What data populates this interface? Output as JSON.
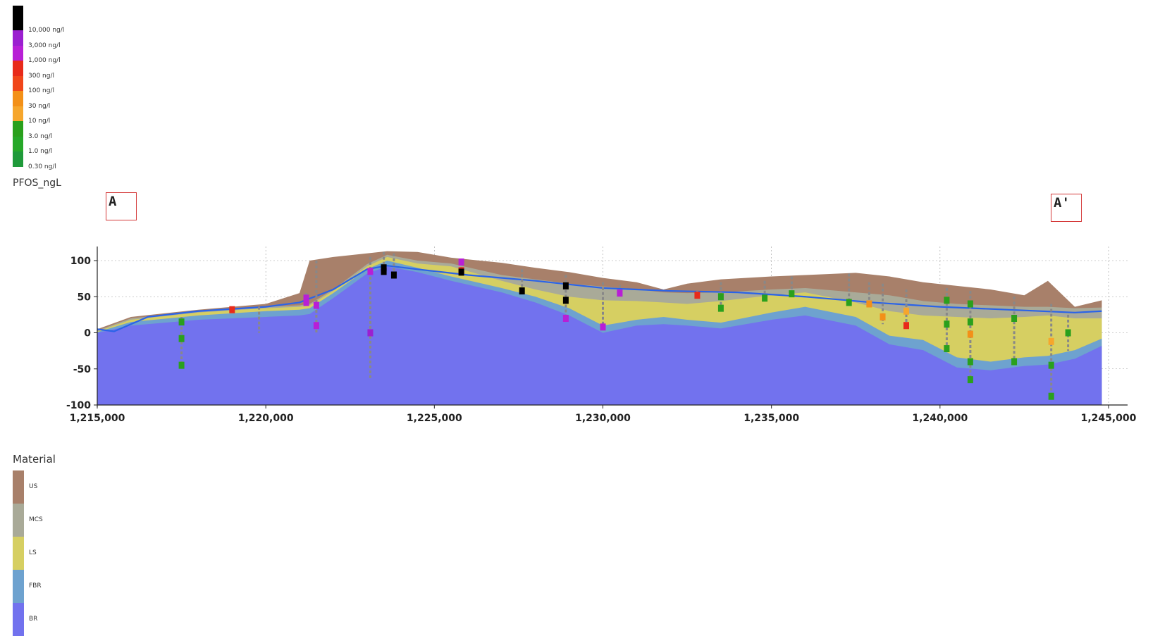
{
  "concentration_legend": {
    "title": "PFOS_ngL",
    "items": [
      {
        "label": "10,000 ng/l",
        "color": "#000000"
      },
      {
        "label": "3,000 ng/l",
        "color": "#9b1fd0"
      },
      {
        "label": "1,000 ng/l",
        "color": "#b81fd6"
      },
      {
        "label": "300 ng/l",
        "color": "#e82a1a"
      },
      {
        "label": "100 ng/l",
        "color": "#f0461a"
      },
      {
        "label": "30 ng/l",
        "color": "#f39018"
      },
      {
        "label": "10 ng/l",
        "color": "#f6a62c"
      },
      {
        "label": "3.0 ng/l",
        "color": "#2aa01c"
      },
      {
        "label": "1.0 ng/l",
        "color": "#26a828"
      },
      {
        "label": "0.30 ng/l",
        "color": "#1f9a3a"
      }
    ]
  },
  "markers": {
    "start": "A",
    "end": "A'"
  },
  "material_legend": {
    "title": "Material",
    "items": [
      {
        "label": "US",
        "color": "#a8806a"
      },
      {
        "label": "MCS",
        "color": "#a9aa98"
      },
      {
        "label": "LS",
        "color": "#d6cf62"
      },
      {
        "label": "FBR",
        "color": "#6ea2cf"
      },
      {
        "label": "BR",
        "color": "#7272ee"
      }
    ]
  },
  "chart_data": {
    "type": "area",
    "xlim": [
      1215000,
      1245000
    ],
    "ylim": [
      -100,
      120
    ],
    "x_ticks": [
      1215000,
      1220000,
      1225000,
      1230000,
      1235000,
      1240000,
      1245000
    ],
    "x_tick_labels": [
      "1,215,000",
      "1,220,000",
      "1,225,000",
      "1,230,000",
      "1,235,000",
      "1,240,000",
      "1,245,000"
    ],
    "y_ticks": [
      -100,
      -50,
      0,
      50,
      100
    ],
    "y_tick_labels": [
      "-100",
      "-50",
      "0",
      "50",
      "100"
    ],
    "grid": true,
    "layers_top": {
      "x": [
        1215000,
        1216000,
        1218000,
        1220000,
        1221000,
        1221300,
        1222000,
        1223000,
        1223600,
        1224500,
        1225500,
        1227000,
        1228000,
        1229000,
        1230000,
        1231000,
        1231800,
        1232500,
        1233500,
        1235000,
        1236000,
        1237500,
        1238500,
        1239500,
        1240500,
        1241500,
        1242500,
        1243200,
        1244000,
        1244800
      ],
      "US": [
        5,
        22,
        32,
        40,
        55,
        100,
        105,
        110,
        113,
        112,
        104,
        97,
        90,
        84,
        76,
        70,
        60,
        68,
        74,
        78,
        80,
        83,
        78,
        70,
        65,
        60,
        52,
        72,
        36,
        45
      ],
      "MCS": [
        3,
        20,
        30,
        36,
        38,
        40,
        60,
        95,
        108,
        100,
        96,
        80,
        74,
        68,
        64,
        60,
        56,
        55,
        56,
        60,
        62,
        56,
        52,
        44,
        40,
        38,
        36,
        36,
        34,
        35
      ],
      "LS": [
        2,
        18,
        28,
        34,
        36,
        38,
        58,
        92,
        105,
        96,
        92,
        72,
        60,
        50,
        45,
        44,
        42,
        40,
        44,
        52,
        56,
        42,
        30,
        24,
        22,
        20,
        22,
        24,
        20,
        20
      ],
      "FBR": [
        1,
        15,
        24,
        30,
        32,
        34,
        55,
        88,
        100,
        90,
        78,
        62,
        50,
        34,
        10,
        18,
        22,
        18,
        14,
        28,
        36,
        22,
        -4,
        -10,
        -34,
        -40,
        -34,
        -32,
        -24,
        -8
      ],
      "BR": [
        0,
        10,
        18,
        22,
        24,
        26,
        48,
        82,
        92,
        84,
        72,
        56,
        42,
        24,
        0,
        10,
        12,
        10,
        6,
        18,
        24,
        10,
        -16,
        -24,
        -48,
        -52,
        -46,
        -44,
        -36,
        -18
      ]
    },
    "water_table": {
      "x": [
        1215000,
        1215500,
        1216500,
        1218000,
        1220000,
        1221000,
        1222000,
        1223000,
        1223600,
        1224500,
        1226000,
        1228000,
        1230000,
        1232000,
        1234000,
        1236000,
        1238000,
        1240000,
        1242000,
        1244000,
        1244800
      ],
      "y": [
        5,
        2,
        22,
        30,
        36,
        42,
        60,
        88,
        93,
        88,
        80,
        72,
        62,
        58,
        56,
        50,
        42,
        36,
        32,
        28,
        30
      ]
    },
    "boreholes": [
      {
        "x": 1217500,
        "top": 22,
        "bottom": -50,
        "samples": [
          {
            "z": 15,
            "c": "#2aa01c"
          },
          {
            "z": -8,
            "c": "#2aa01c"
          },
          {
            "z": -45,
            "c": "#2aa01c"
          }
        ]
      },
      {
        "x": 1219000,
        "top": 35,
        "bottom": 30,
        "samples": [
          {
            "z": 32,
            "c": "#e82a1a"
          }
        ]
      },
      {
        "x": 1219800,
        "top": 36,
        "bottom": 0,
        "samples": []
      },
      {
        "x": 1221200,
        "top": 55,
        "bottom": 38,
        "samples": [
          {
            "z": 48,
            "c": "#b81fd6"
          },
          {
            "z": 42,
            "c": "#b81fd6"
          }
        ]
      },
      {
        "x": 1221500,
        "top": 100,
        "bottom": 0,
        "samples": [
          {
            "z": 38,
            "c": "#b81fd6"
          },
          {
            "z": 10,
            "c": "#b81fd6"
          }
        ]
      },
      {
        "x": 1223100,
        "top": 105,
        "bottom": -65,
        "samples": [
          {
            "z": 85,
            "c": "#b81fd6"
          },
          {
            "z": 0,
            "c": "#9b1fd0"
          }
        ]
      },
      {
        "x": 1223500,
        "top": 112,
        "bottom": 80,
        "samples": [
          {
            "z": 85,
            "c": "#000000"
          },
          {
            "z": 90,
            "c": "#000000"
          }
        ]
      },
      {
        "x": 1223800,
        "top": 110,
        "bottom": 75,
        "samples": [
          {
            "z": 80,
            "c": "#000000"
          }
        ]
      },
      {
        "x": 1225800,
        "top": 98,
        "bottom": 80,
        "samples": [
          {
            "z": 86,
            "c": "#e82a1a"
          },
          {
            "z": 84,
            "c": "#000000"
          },
          {
            "z": 98,
            "c": "#b81fd6"
          }
        ]
      },
      {
        "x": 1227600,
        "top": 88,
        "bottom": 55,
        "samples": [
          {
            "z": 58,
            "c": "#000000"
          }
        ]
      },
      {
        "x": 1228900,
        "top": 80,
        "bottom": 15,
        "samples": [
          {
            "z": 65,
            "c": "#000000"
          },
          {
            "z": 45,
            "c": "#000000"
          },
          {
            "z": 20,
            "c": "#b81fd6"
          }
        ]
      },
      {
        "x": 1230000,
        "top": 70,
        "bottom": 8,
        "samples": [
          {
            "z": 8,
            "c": "#b81fd6"
          }
        ]
      },
      {
        "x": 1230500,
        "top": 66,
        "bottom": 52,
        "samples": [
          {
            "z": 55,
            "c": "#b81fd6"
          }
        ]
      },
      {
        "x": 1232800,
        "top": 58,
        "bottom": 50,
        "samples": [
          {
            "z": 52,
            "c": "#e82a1a"
          }
        ]
      },
      {
        "x": 1233500,
        "top": 70,
        "bottom": 30,
        "samples": [
          {
            "z": 50,
            "c": "#2aa01c"
          },
          {
            "z": 34,
            "c": "#2aa01c"
          }
        ]
      },
      {
        "x": 1234800,
        "top": 72,
        "bottom": 45,
        "samples": [
          {
            "z": 48,
            "c": "#2aa01c"
          }
        ]
      },
      {
        "x": 1235600,
        "top": 78,
        "bottom": 50,
        "samples": [
          {
            "z": 54,
            "c": "#2aa01c"
          }
        ]
      },
      {
        "x": 1237300,
        "top": 82,
        "bottom": 40,
        "samples": [
          {
            "z": 42,
            "c": "#2aa01c"
          }
        ]
      },
      {
        "x": 1237900,
        "top": 70,
        "bottom": 36,
        "samples": [
          {
            "z": 40,
            "c": "#f39018"
          }
        ]
      },
      {
        "x": 1238300,
        "top": 68,
        "bottom": 12,
        "samples": [
          {
            "z": 22,
            "c": "#f39018"
          }
        ]
      },
      {
        "x": 1239000,
        "top": 60,
        "bottom": 8,
        "samples": [
          {
            "z": 30,
            "c": "#f6a62c"
          },
          {
            "z": 10,
            "c": "#e82a1a"
          }
        ]
      },
      {
        "x": 1240200,
        "top": 62,
        "bottom": -25,
        "samples": [
          {
            "z": 45,
            "c": "#2aa01c"
          },
          {
            "z": 12,
            "c": "#2aa01c"
          },
          {
            "z": -22,
            "c": "#2aa01c"
          }
        ]
      },
      {
        "x": 1240900,
        "top": 58,
        "bottom": -68,
        "samples": [
          {
            "z": 40,
            "c": "#2aa01c"
          },
          {
            "z": 15,
            "c": "#2aa01c"
          },
          {
            "z": -2,
            "c": "#f39018"
          },
          {
            "z": -40,
            "c": "#2aa01c"
          },
          {
            "z": -65,
            "c": "#2aa01c"
          }
        ]
      },
      {
        "x": 1242200,
        "top": 50,
        "bottom": -45,
        "samples": [
          {
            "z": 20,
            "c": "#2aa01c"
          },
          {
            "z": -40,
            "c": "#2aa01c"
          }
        ]
      },
      {
        "x": 1243300,
        "top": 40,
        "bottom": -90,
        "samples": [
          {
            "z": -12,
            "c": "#f6a62c"
          },
          {
            "z": -45,
            "c": "#2aa01c"
          },
          {
            "z": -88,
            "c": "#2aa01c"
          }
        ]
      },
      {
        "x": 1243800,
        "top": 25,
        "bottom": -25,
        "samples": [
          {
            "z": 0,
            "c": "#2aa01c"
          }
        ]
      }
    ],
    "colors": {
      "water_table": "#2a63e8",
      "borehole": "#888888",
      "grid": "#9a9a9a",
      "axis": "#222222"
    }
  }
}
